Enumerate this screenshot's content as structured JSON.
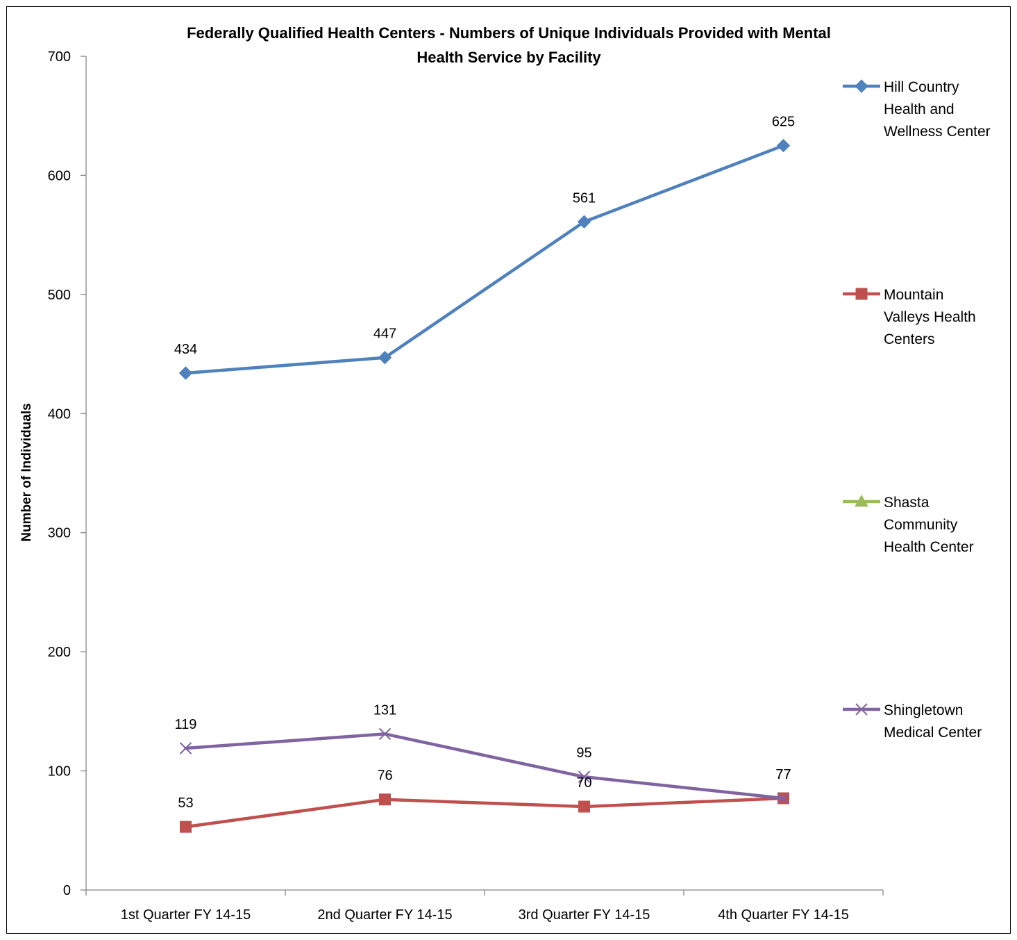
{
  "chart_data": {
    "type": "line",
    "title": "Federally Qualified Health Centers - Numbers of Unique Individuals Provided with Mental Health Service by Facility",
    "title_lines": [
      "Federally Qualified Health Centers - Numbers of Unique Individuals Provided with Mental",
      "Health Service by Facility"
    ],
    "xlabel": "",
    "ylabel": "Number of Individuals",
    "ylim": [
      0,
      700
    ],
    "yticks": [
      0,
      100,
      200,
      300,
      400,
      500,
      600,
      700
    ],
    "categories": [
      "1st Quarter FY 14-15",
      "2nd Quarter FY 14-15",
      "3rd Quarter FY 14-15",
      "4th Quarter FY 14-15"
    ],
    "grid": false,
    "legend_position": "right",
    "series": [
      {
        "name": "Hill Country Health and Wellness Center",
        "legend_lines": [
          "Hill Country",
          "Health and",
          "Wellness Center"
        ],
        "values": [
          434,
          447,
          561,
          625
        ],
        "color": "#4F81BD",
        "marker": "diamond"
      },
      {
        "name": "Mountain Valleys Health Centers",
        "legend_lines": [
          "Mountain",
          "Valleys Health",
          "Centers"
        ],
        "values": [
          53,
          76,
          70,
          77
        ],
        "color": "#C0504D",
        "marker": "square"
      },
      {
        "name": "Shasta Community Health Center",
        "legend_lines": [
          "Shasta",
          "Community",
          "Health Center"
        ],
        "values": [
          null,
          null,
          null,
          null
        ],
        "color": "#9BBB59",
        "marker": "triangle"
      },
      {
        "name": "Shingletown Medical Center",
        "legend_lines": [
          "Shingletown",
          "Medical Center"
        ],
        "values": [
          119,
          131,
          95,
          77
        ],
        "color": "#8064A2",
        "marker": "x"
      }
    ]
  }
}
